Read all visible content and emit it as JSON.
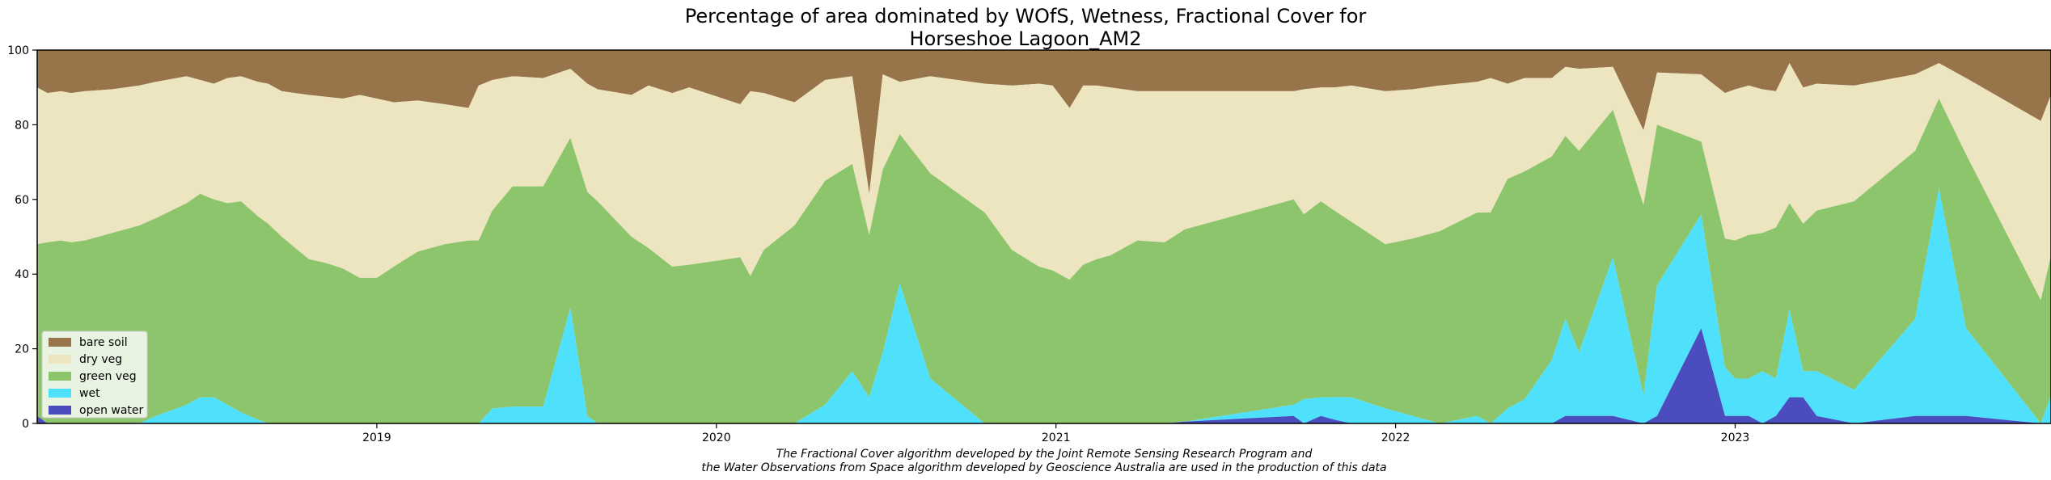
{
  "chart_data": {
    "type": "area",
    "stacked": true,
    "title_line1": "Percentage of area dominated by WOfS, Wetness, Fractional Cover for",
    "title_line2": "Horseshoe Lagoon_AM2",
    "xlabel": "",
    "ylabel": "",
    "ylim": [
      0,
      100
    ],
    "xlim": [
      2018.0,
      2023.93
    ],
    "y_ticks": [
      "0",
      "20",
      "40",
      "60",
      "80",
      "100"
    ],
    "x_ticks": [
      {
        "label": "2019",
        "value": 2019.0
      },
      {
        "label": "2020",
        "value": 2020.0
      },
      {
        "label": "2021",
        "value": 2021.0
      },
      {
        "label": "2022",
        "value": 2022.0
      },
      {
        "label": "2023",
        "value": 2023.0
      }
    ],
    "legend_position": "lower-left",
    "footnote_line1": "The Fractional Cover algorithm developed by the Joint Remote Sensing Research Program and",
    "footnote_line2": "the Water Observations from Space algorithm developed by Geoscience Australia are used in the production of this data",
    "series": [
      {
        "name": "open water",
        "color": "#4b4dbf"
      },
      {
        "name": "wet",
        "color": "#4fe0fb"
      },
      {
        "name": "green veg",
        "color": "#8cc56b"
      },
      {
        "name": "dry veg",
        "color": "#ede4c0"
      },
      {
        "name": "bare soil",
        "color": "#98744b"
      }
    ],
    "cumulative_points": [
      {
        "x": 2018.0,
        "open_water": 2,
        "wet": 2,
        "green_veg": 48,
        "dry_veg": 90
      },
      {
        "x": 2018.03,
        "open_water": 0,
        "wet": 0,
        "green_veg": 48.5,
        "dry_veg": 88.5
      },
      {
        "x": 2018.07,
        "open_water": 0,
        "wet": 0,
        "green_veg": 49,
        "dry_veg": 89
      },
      {
        "x": 2018.1,
        "open_water": 0,
        "wet": 0,
        "green_veg": 48.5,
        "dry_veg": 88.5
      },
      {
        "x": 2018.14,
        "open_water": 0,
        "wet": 0,
        "green_veg": 49,
        "dry_veg": 89
      },
      {
        "x": 2018.22,
        "open_water": 0,
        "wet": 0,
        "green_veg": 51,
        "dry_veg": 89.5
      },
      {
        "x": 2018.3,
        "open_water": 0,
        "wet": 0,
        "green_veg": 53,
        "dry_veg": 90.5
      },
      {
        "x": 2018.35,
        "open_water": 0,
        "wet": 2,
        "green_veg": 55,
        "dry_veg": 91.5
      },
      {
        "x": 2018.44,
        "open_water": 0,
        "wet": 5,
        "green_veg": 59,
        "dry_veg": 93
      },
      {
        "x": 2018.48,
        "open_water": 0,
        "wet": 7,
        "green_veg": 61.5,
        "dry_veg": 92
      },
      {
        "x": 2018.52,
        "open_water": 0,
        "wet": 7,
        "green_veg": 60,
        "dry_veg": 91
      },
      {
        "x": 2018.56,
        "open_water": 0,
        "wet": 5,
        "green_veg": 59,
        "dry_veg": 92.5
      },
      {
        "x": 2018.6,
        "open_water": 0,
        "wet": 3,
        "green_veg": 59.5,
        "dry_veg": 93
      },
      {
        "x": 2018.65,
        "open_water": 0,
        "wet": 1,
        "green_veg": 55.5,
        "dry_veg": 91.5
      },
      {
        "x": 2018.68,
        "open_water": 0,
        "wet": 0,
        "green_veg": 53.5,
        "dry_veg": 91
      },
      {
        "x": 2018.72,
        "open_water": 0,
        "wet": 0,
        "green_veg": 50,
        "dry_veg": 89
      },
      {
        "x": 2018.8,
        "open_water": 0,
        "wet": 0,
        "green_veg": 44,
        "dry_veg": 88
      },
      {
        "x": 2018.85,
        "open_water": 0,
        "wet": 0,
        "green_veg": 43,
        "dry_veg": 87.5
      },
      {
        "x": 2018.9,
        "open_water": 0,
        "wet": 0,
        "green_veg": 41.5,
        "dry_veg": 87
      },
      {
        "x": 2018.95,
        "open_water": 0,
        "wet": 0,
        "green_veg": 39,
        "dry_veg": 88
      },
      {
        "x": 2019.0,
        "open_water": 0,
        "wet": 0,
        "green_veg": 39,
        "dry_veg": 87
      },
      {
        "x": 2019.05,
        "open_water": 0,
        "wet": 0,
        "green_veg": 42,
        "dry_veg": 86
      },
      {
        "x": 2019.12,
        "open_water": 0,
        "wet": 0,
        "green_veg": 46,
        "dry_veg": 86.5
      },
      {
        "x": 2019.2,
        "open_water": 0,
        "wet": 0,
        "green_veg": 48,
        "dry_veg": 85.5
      },
      {
        "x": 2019.27,
        "open_water": 0,
        "wet": 0,
        "green_veg": 49,
        "dry_veg": 84.5
      },
      {
        "x": 2019.3,
        "open_water": 0,
        "wet": 0,
        "green_veg": 49,
        "dry_veg": 90.5
      },
      {
        "x": 2019.34,
        "open_water": 0,
        "wet": 4,
        "green_veg": 57,
        "dry_veg": 92
      },
      {
        "x": 2019.4,
        "open_water": 0,
        "wet": 4.5,
        "green_veg": 63.5,
        "dry_veg": 93
      },
      {
        "x": 2019.49,
        "open_water": 0,
        "wet": 4.5,
        "green_veg": 63.5,
        "dry_veg": 92.5
      },
      {
        "x": 2019.57,
        "open_water": 0,
        "wet": 31,
        "green_veg": 76.5,
        "dry_veg": 95
      },
      {
        "x": 2019.62,
        "open_water": 0,
        "wet": 2,
        "green_veg": 62,
        "dry_veg": 91
      },
      {
        "x": 2019.65,
        "open_water": 0,
        "wet": 0,
        "green_veg": 59.5,
        "dry_veg": 89.5
      },
      {
        "x": 2019.75,
        "open_water": 0,
        "wet": 0,
        "green_veg": 50,
        "dry_veg": 88
      },
      {
        "x": 2019.8,
        "open_water": 0,
        "wet": 0,
        "green_veg": 47,
        "dry_veg": 90.5
      },
      {
        "x": 2019.87,
        "open_water": 0,
        "wet": 0,
        "green_veg": 42,
        "dry_veg": 88.5
      },
      {
        "x": 2019.92,
        "open_water": 0,
        "wet": 0,
        "green_veg": 42.5,
        "dry_veg": 90
      },
      {
        "x": 2020.07,
        "open_water": 0,
        "wet": 0,
        "green_veg": 44.5,
        "dry_veg": 85.5
      },
      {
        "x": 2020.1,
        "open_water": 0,
        "wet": 0,
        "green_veg": 39.5,
        "dry_veg": 89
      },
      {
        "x": 2020.14,
        "open_water": 0,
        "wet": 0,
        "green_veg": 46.5,
        "dry_veg": 88.5
      },
      {
        "x": 2020.23,
        "open_water": 0,
        "wet": 0,
        "green_veg": 53,
        "dry_veg": 86
      },
      {
        "x": 2020.32,
        "open_water": 0,
        "wet": 5,
        "green_veg": 65,
        "dry_veg": 92
      },
      {
        "x": 2020.4,
        "open_water": 0,
        "wet": 14,
        "green_veg": 69.5,
        "dry_veg": 93
      },
      {
        "x": 2020.45,
        "open_water": 0,
        "wet": 7,
        "green_veg": 50.5,
        "dry_veg": 61.5
      },
      {
        "x": 2020.49,
        "open_water": 0,
        "wet": 19,
        "green_veg": 68,
        "dry_veg": 93.5
      },
      {
        "x": 2020.54,
        "open_water": 0,
        "wet": 37.5,
        "green_veg": 77.5,
        "dry_veg": 91.5
      },
      {
        "x": 2020.63,
        "open_water": 0,
        "wet": 12,
        "green_veg": 67,
        "dry_veg": 93
      },
      {
        "x": 2020.79,
        "open_water": 0,
        "wet": 0,
        "green_veg": 56.5,
        "dry_veg": 91
      },
      {
        "x": 2020.87,
        "open_water": 0,
        "wet": 0,
        "green_veg": 46.5,
        "dry_veg": 90.5
      },
      {
        "x": 2020.95,
        "open_water": 0,
        "wet": 0,
        "green_veg": 42,
        "dry_veg": 91
      },
      {
        "x": 2020.99,
        "open_water": 0,
        "wet": 0,
        "green_veg": 41,
        "dry_veg": 90.5
      },
      {
        "x": 2021.04,
        "open_water": 0,
        "wet": 0,
        "green_veg": 38.5,
        "dry_veg": 84.5
      },
      {
        "x": 2021.08,
        "open_water": 0,
        "wet": 0,
        "green_veg": 42.5,
        "dry_veg": 90.5
      },
      {
        "x": 2021.12,
        "open_water": 0,
        "wet": 0,
        "green_veg": 44,
        "dry_veg": 90.5
      },
      {
        "x": 2021.16,
        "open_water": 0,
        "wet": 0,
        "green_veg": 45,
        "dry_veg": 90
      },
      {
        "x": 2021.24,
        "open_water": 0,
        "wet": 0,
        "green_veg": 49,
        "dry_veg": 89
      },
      {
        "x": 2021.32,
        "open_water": 0,
        "wet": 0,
        "green_veg": 48.5,
        "dry_veg": 89
      },
      {
        "x": 2021.38,
        "open_water": 0.5,
        "wet": 0.5,
        "green_veg": 52,
        "dry_veg": 89
      },
      {
        "x": 2021.7,
        "open_water": 2,
        "wet": 5,
        "green_veg": 60,
        "dry_veg": 89
      },
      {
        "x": 2021.73,
        "open_water": 0,
        "wet": 6.5,
        "green_veg": 56,
        "dry_veg": 89.5
      },
      {
        "x": 2021.78,
        "open_water": 2,
        "wet": 7,
        "green_veg": 59.5,
        "dry_veg": 90
      },
      {
        "x": 2021.82,
        "open_water": 1,
        "wet": 7,
        "green_veg": 57,
        "dry_veg": 90
      },
      {
        "x": 2021.87,
        "open_water": 0,
        "wet": 7,
        "green_veg": 54,
        "dry_veg": 90.5
      },
      {
        "x": 2021.97,
        "open_water": 0,
        "wet": 4,
        "green_veg": 48,
        "dry_veg": 89
      },
      {
        "x": 2022.05,
        "open_water": 0,
        "wet": 2,
        "green_veg": 49.5,
        "dry_veg": 89.5
      },
      {
        "x": 2022.13,
        "open_water": 0,
        "wet": 0,
        "green_veg": 51.5,
        "dry_veg": 90.5
      },
      {
        "x": 2022.24,
        "open_water": 0,
        "wet": 2,
        "green_veg": 56.5,
        "dry_veg": 91.5
      },
      {
        "x": 2022.28,
        "open_water": 0,
        "wet": 0,
        "green_veg": 56.5,
        "dry_veg": 92.5
      },
      {
        "x": 2022.33,
        "open_water": 0,
        "wet": 4,
        "green_veg": 65.5,
        "dry_veg": 91
      },
      {
        "x": 2022.38,
        "open_water": 0,
        "wet": 6.5,
        "green_veg": 67.5,
        "dry_veg": 92.5
      },
      {
        "x": 2022.46,
        "open_water": 0,
        "wet": 17,
        "green_veg": 71.5,
        "dry_veg": 92.5
      },
      {
        "x": 2022.5,
        "open_water": 2,
        "wet": 28,
        "green_veg": 77,
        "dry_veg": 95.5
      },
      {
        "x": 2022.54,
        "open_water": 2,
        "wet": 19,
        "green_veg": 73,
        "dry_veg": 95
      },
      {
        "x": 2022.64,
        "open_water": 2,
        "wet": 44.5,
        "green_veg": 84,
        "dry_veg": 95.5
      },
      {
        "x": 2022.73,
        "open_water": 0,
        "wet": 7.5,
        "green_veg": 58.5,
        "dry_veg": 78.5
      },
      {
        "x": 2022.77,
        "open_water": 2,
        "wet": 37,
        "green_veg": 80,
        "dry_veg": 94
      },
      {
        "x": 2022.9,
        "open_water": 25.5,
        "wet": 56,
        "green_veg": 75.5,
        "dry_veg": 93.5
      },
      {
        "x": 2022.97,
        "open_water": 2,
        "wet": 15,
        "green_veg": 49.5,
        "dry_veg": 88.5
      },
      {
        "x": 2023.0,
        "open_water": 2,
        "wet": 12,
        "green_veg": 49,
        "dry_veg": 89.5
      },
      {
        "x": 2023.04,
        "open_water": 2,
        "wet": 12,
        "green_veg": 50.5,
        "dry_veg": 90.5
      },
      {
        "x": 2023.08,
        "open_water": 0,
        "wet": 14,
        "green_veg": 51,
        "dry_veg": 89.5
      },
      {
        "x": 2023.12,
        "open_water": 2,
        "wet": 12,
        "green_veg": 52.5,
        "dry_veg": 89
      },
      {
        "x": 2023.16,
        "open_water": 7,
        "wet": 30.5,
        "green_veg": 59,
        "dry_veg": 96.5
      },
      {
        "x": 2023.2,
        "open_water": 7,
        "wet": 14,
        "green_veg": 53.5,
        "dry_veg": 90
      },
      {
        "x": 2023.24,
        "open_water": 2,
        "wet": 14,
        "green_veg": 57,
        "dry_veg": 91
      },
      {
        "x": 2023.35,
        "open_water": 0,
        "wet": 9,
        "green_veg": 59.5,
        "dry_veg": 90.5
      },
      {
        "x": 2023.53,
        "open_water": 2,
        "wet": 28,
        "green_veg": 73,
        "dry_veg": 93.5
      },
      {
        "x": 2023.6,
        "open_water": 2,
        "wet": 63,
        "green_veg": 87,
        "dry_veg": 96.5
      },
      {
        "x": 2023.68,
        "open_water": 2,
        "wet": 25.5,
        "green_veg": 72,
        "dry_veg": 92.5
      },
      {
        "x": 2023.9,
        "open_water": 0,
        "wet": 0,
        "green_veg": 33,
        "dry_veg": 81
      },
      {
        "x": 2023.93,
        "open_water": 0,
        "wet": 7.5,
        "green_veg": 45,
        "dry_veg": 88
      }
    ]
  }
}
